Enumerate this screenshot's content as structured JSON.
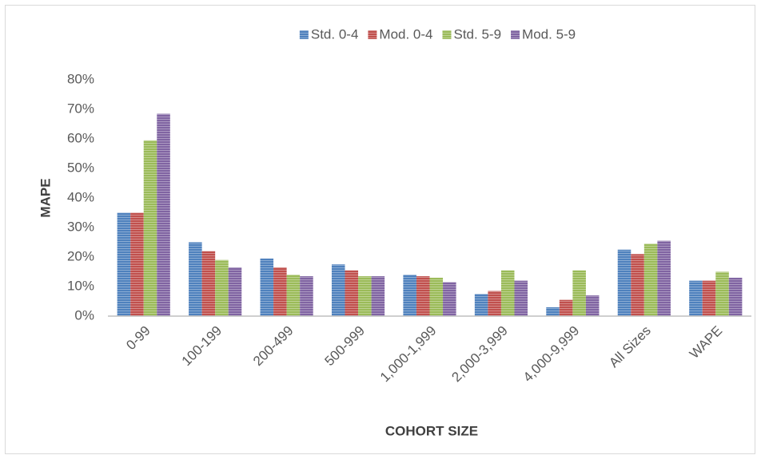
{
  "chart_data": {
    "type": "bar",
    "x_label": "COHORT SIZE",
    "y_label": "MAPE",
    "categories": [
      "0-99",
      "100-199",
      "200-499",
      "500-999",
      "1,000-1,999",
      "2,000-3,999",
      "4,000-9,999",
      "All Sizes",
      "WAPE"
    ],
    "series": [
      {
        "name": "Std. 0-4",
        "color": "#4f81bd",
        "values": [
          35,
          25,
          19.5,
          17.5,
          14,
          7.5,
          3,
          22.5,
          12
        ]
      },
      {
        "name": "Mod. 0-4",
        "color": "#c0504d",
        "values": [
          35,
          22,
          16.5,
          15.5,
          13.5,
          8.5,
          5.5,
          21,
          12
        ]
      },
      {
        "name": "Std. 5-9",
        "color": "#9bbb59",
        "values": [
          59.5,
          19,
          14,
          13.5,
          13,
          15.5,
          15.5,
          24.5,
          15
        ]
      },
      {
        "name": "Mod. 5-9",
        "color": "#8064a2",
        "values": [
          68.5,
          16.5,
          13.5,
          13.5,
          11.5,
          12,
          7,
          25.5,
          13
        ]
      }
    ],
    "ylim": [
      0,
      80
    ],
    "yticks": [
      {
        "value": 0,
        "label": "0%"
      },
      {
        "value": 10,
        "label": "10%"
      },
      {
        "value": 20,
        "label": "20%"
      },
      {
        "value": 30,
        "label": "30%"
      },
      {
        "value": 40,
        "label": "40%"
      },
      {
        "value": 50,
        "label": "50%"
      },
      {
        "value": 60,
        "label": "60%"
      },
      {
        "value": 70,
        "label": "70%"
      },
      {
        "value": 80,
        "label": "80%"
      }
    ],
    "legend": "top",
    "grid": false
  }
}
